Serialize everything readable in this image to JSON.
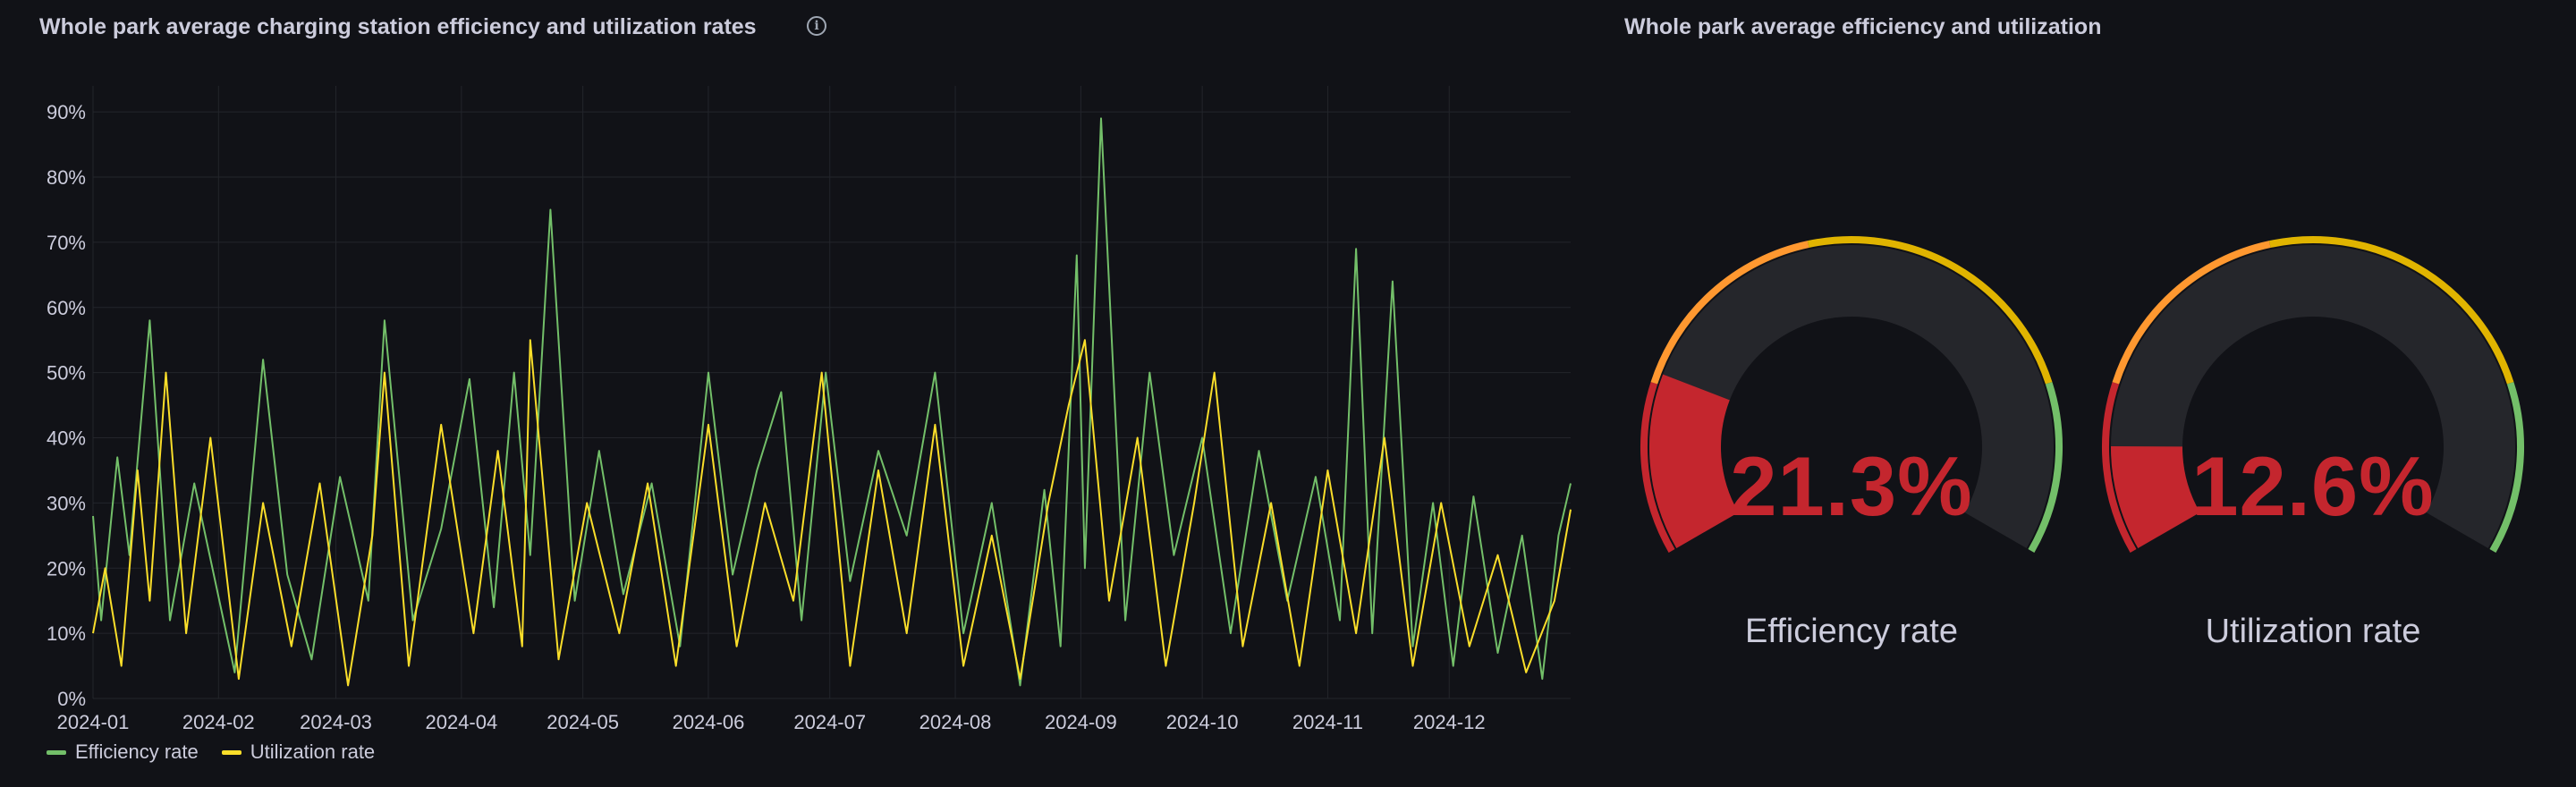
{
  "left_panel": {
    "title": "Whole park average charging station efficiency and utilization rates",
    "info_icon": "info-circle-icon"
  },
  "right_panel": {
    "title": "Whole park average efficiency and utilization"
  },
  "colors": {
    "background": "#111217",
    "efficiency": "#73bf69",
    "utilization": "#fade2a",
    "gauge_red": "#c4262e",
    "gauge_orange": "#ff9830",
    "gauge_yellow": "#e0b400",
    "gauge_green": "#73bf69",
    "gauge_track": "#25262b"
  },
  "chart_data": [
    {
      "type": "line",
      "title": "Whole park average charging station efficiency and utilization rates",
      "x_ticks": [
        "2024-01",
        "2024-02",
        "2024-03",
        "2024-04",
        "2024-05",
        "2024-06",
        "2024-07",
        "2024-08",
        "2024-09",
        "2024-10",
        "2024-11",
        "2024-12"
      ],
      "y_ticks": [
        "0%",
        "10%",
        "20%",
        "30%",
        "40%",
        "50%",
        "60%",
        "70%",
        "80%",
        "90%"
      ],
      "xlim": [
        "2024-01-01",
        "2024-12-31"
      ],
      "ylim": [
        0,
        1.0
      ],
      "grid": true,
      "legend_placement": "bottom-left",
      "series": [
        {
          "name": "Efficiency rate",
          "color": "#73bf69",
          "x": [
            "2024-01-01",
            "2024-01-03",
            "2024-01-07",
            "2024-01-10",
            "2024-01-15",
            "2024-01-20",
            "2024-01-26",
            "2024-02-05",
            "2024-02-12",
            "2024-02-18",
            "2024-02-24",
            "2024-03-02",
            "2024-03-09",
            "2024-03-13",
            "2024-03-20",
            "2024-03-27",
            "2024-04-03",
            "2024-04-09",
            "2024-04-14",
            "2024-04-18",
            "2024-04-23",
            "2024-04-29",
            "2024-05-05",
            "2024-05-11",
            "2024-05-18",
            "2024-05-25",
            "2024-06-01",
            "2024-06-07",
            "2024-06-13",
            "2024-06-19",
            "2024-06-24",
            "2024-06-30",
            "2024-07-06",
            "2024-07-13",
            "2024-07-20",
            "2024-07-27",
            "2024-08-03",
            "2024-08-10",
            "2024-08-17",
            "2024-08-23",
            "2024-08-27",
            "2024-08-31",
            "2024-09-02",
            "2024-09-06",
            "2024-09-12",
            "2024-09-18",
            "2024-09-24",
            "2024-10-01",
            "2024-10-08",
            "2024-10-15",
            "2024-10-22",
            "2024-10-29",
            "2024-11-04",
            "2024-11-08",
            "2024-11-12",
            "2024-11-17",
            "2024-11-22",
            "2024-11-27",
            "2024-12-02",
            "2024-12-07",
            "2024-12-13",
            "2024-12-19",
            "2024-12-24",
            "2024-12-28",
            "2024-12-31"
          ],
          "y": [
            0.28,
            0.12,
            0.37,
            0.22,
            0.58,
            0.12,
            0.33,
            0.04,
            0.52,
            0.19,
            0.06,
            0.34,
            0.15,
            0.58,
            0.12,
            0.26,
            0.49,
            0.14,
            0.5,
            0.22,
            0.75,
            0.15,
            0.38,
            0.16,
            0.33,
            0.08,
            0.5,
            0.19,
            0.35,
            0.47,
            0.12,
            0.5,
            0.18,
            0.38,
            0.25,
            0.5,
            0.1,
            0.3,
            0.02,
            0.32,
            0.08,
            0.68,
            0.2,
            0.89,
            0.12,
            0.5,
            0.22,
            0.4,
            0.1,
            0.38,
            0.15,
            0.34,
            0.12,
            0.69,
            0.1,
            0.64,
            0.08,
            0.3,
            0.05,
            0.31,
            0.07,
            0.25,
            0.03,
            0.25,
            0.33
          ]
        },
        {
          "name": "Utilization rate",
          "color": "#fade2a",
          "x": [
            "2024-01-01",
            "2024-01-04",
            "2024-01-08",
            "2024-01-12",
            "2024-01-15",
            "2024-01-19",
            "2024-01-24",
            "2024-01-30",
            "2024-02-06",
            "2024-02-12",
            "2024-02-19",
            "2024-02-26",
            "2024-03-04",
            "2024-03-10",
            "2024-03-13",
            "2024-03-19",
            "2024-03-27",
            "2024-04-04",
            "2024-04-10",
            "2024-04-16",
            "2024-04-18",
            "2024-04-25",
            "2024-05-02",
            "2024-05-10",
            "2024-05-17",
            "2024-05-24",
            "2024-06-01",
            "2024-06-08",
            "2024-06-15",
            "2024-06-22",
            "2024-06-29",
            "2024-07-06",
            "2024-07-13",
            "2024-07-20",
            "2024-07-27",
            "2024-08-03",
            "2024-08-10",
            "2024-08-17",
            "2024-08-24",
            "2024-08-29",
            "2024-09-02",
            "2024-09-08",
            "2024-09-15",
            "2024-09-22",
            "2024-09-29",
            "2024-10-04",
            "2024-10-11",
            "2024-10-18",
            "2024-10-25",
            "2024-11-01",
            "2024-11-08",
            "2024-11-15",
            "2024-11-22",
            "2024-11-29",
            "2024-12-06",
            "2024-12-13",
            "2024-12-20",
            "2024-12-27",
            "2024-12-31"
          ],
          "y": [
            0.1,
            0.2,
            0.05,
            0.35,
            0.15,
            0.5,
            0.1,
            0.4,
            0.03,
            0.3,
            0.08,
            0.33,
            0.02,
            0.25,
            0.5,
            0.05,
            0.42,
            0.1,
            0.38,
            0.08,
            0.55,
            0.06,
            0.3,
            0.1,
            0.33,
            0.05,
            0.42,
            0.08,
            0.3,
            0.15,
            0.5,
            0.05,
            0.35,
            0.1,
            0.42,
            0.05,
            0.25,
            0.03,
            0.3,
            0.45,
            0.55,
            0.15,
            0.4,
            0.05,
            0.3,
            0.5,
            0.08,
            0.3,
            0.05,
            0.35,
            0.1,
            0.4,
            0.05,
            0.3,
            0.08,
            0.22,
            0.04,
            0.15,
            0.29
          ]
        }
      ]
    },
    {
      "type": "gauge",
      "label": "Efficiency rate",
      "value": 0.213,
      "display": "21.3%",
      "min": 0,
      "max": 1
    },
    {
      "type": "gauge",
      "label": "Utilization rate",
      "value": 0.126,
      "display": "12.6%",
      "min": 0,
      "max": 1
    }
  ]
}
